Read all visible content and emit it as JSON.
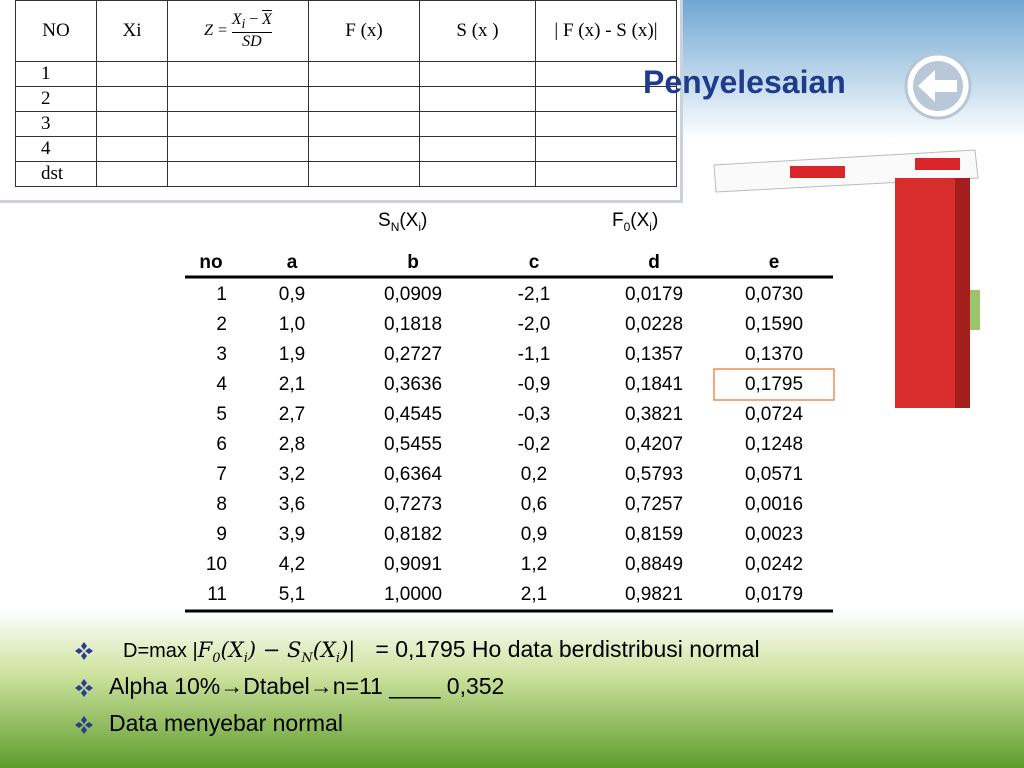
{
  "image_table": {
    "headers": [
      "NO",
      "Xi",
      "F (x)",
      "S (x )",
      "| F (x) - S (x)|"
    ],
    "z_formula": {
      "lhs": "Z =",
      "x": "X",
      "sub": "i",
      "minus": "−",
      "xbar": "X",
      "den": "SD"
    },
    "rows": [
      "1",
      "2",
      "3",
      "4",
      "dst"
    ]
  },
  "title": "Penyelesaian",
  "table": {
    "sn_label": {
      "main": "S",
      "sub": "N",
      "mid": "(X",
      "sub2": "i",
      "end": ")"
    },
    "f0_label": {
      "main": "F",
      "sub": "0",
      "mid": "(X",
      "sub2": "i",
      "end": ")"
    },
    "columns": [
      "no",
      "a",
      "b",
      "c",
      "d",
      "e"
    ],
    "rows": [
      [
        "1",
        "0,9",
        "0,0909",
        "-2,1",
        "0,0179",
        "0,0730"
      ],
      [
        "2",
        "1,0",
        "0,1818",
        "-2,0",
        "0,0228",
        "0,1590"
      ],
      [
        "3",
        "1,9",
        "0,2727",
        "-1,1",
        "0,1357",
        "0,1370"
      ],
      [
        "4",
        "2,1",
        "0,3636",
        "-0,9",
        "0,1841",
        "0,1795"
      ],
      [
        "5",
        "2,7",
        "0,4545",
        "-0,3",
        "0,3821",
        "0,0724"
      ],
      [
        "6",
        "2,8",
        "0,5455",
        "-0,2",
        "0,4207",
        "0,1248"
      ],
      [
        "7",
        "3,2",
        "0,6364",
        "0,2",
        "0,5793",
        "0,0571"
      ],
      [
        "8",
        "3,6",
        "0,7273",
        "0,6",
        "0,7257",
        "0,0016"
      ],
      [
        "9",
        "3,9",
        "0,8182",
        "0,9",
        "0,8159",
        "0,0023"
      ],
      [
        "10",
        "4,2",
        "0,9091",
        "1,2",
        "0,8849",
        "0,0242"
      ],
      [
        "11",
        "5,1",
        "1,0000",
        "2,1",
        "0,9821",
        "0,0179"
      ]
    ]
  },
  "bullets": [
    {
      "lead": "D=max |",
      "f": "F",
      "f_sub": "0",
      "open1": "(X",
      "i1": "i",
      "mid": ") − S",
      "s_sub": "N",
      "open2": "(X",
      "i2": "i",
      "close": ")|",
      "rest": "= 0,1795 Ho data berdistribusi normal"
    },
    {
      "text": "Alpha 10%→Dtabel→n=11 ____ 0,352"
    },
    {
      "text": "Data menyebar normal"
    }
  ]
}
